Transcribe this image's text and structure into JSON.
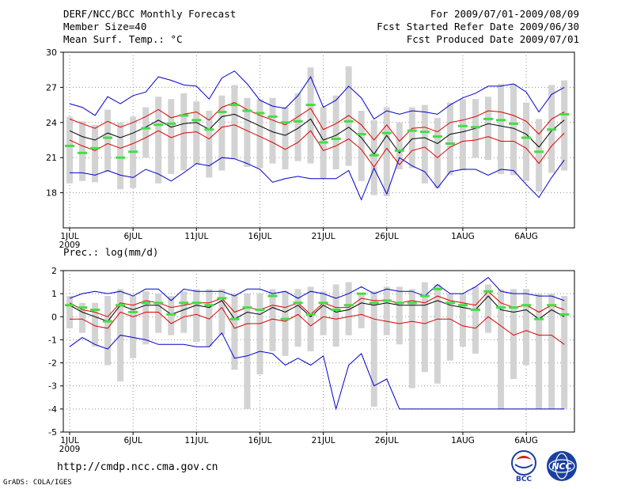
{
  "header": {
    "title": "DERF/NCC/BCC Monthly Forecast",
    "member_size": "Member Size=40",
    "variable": "Mean Surf. Temp.: °C",
    "forecast_period": "For 2009/07/01-2009/08/09",
    "started_refer": "Fcst Started Refer Date 2009/06/30",
    "produced": "Fcst Produced Date 2009/07/01"
  },
  "footer": {
    "url": "http://cmdp.ncc.cma.gov.cn",
    "software": "GrADS: COLA/IGES",
    "logo_bcc": "BCC",
    "logo_ncc": "NCC"
  },
  "colors": {
    "bar": "#d3d3d3",
    "median": "#44dd44",
    "mean": "#000000",
    "spread": "#dd0000",
    "extreme": "#0000cc",
    "grid": "#909090"
  },
  "chart_data": [
    {
      "type": "line",
      "title": "Mean Surf. Temp.: °C",
      "xlabel": "",
      "ylabel": "",
      "x_ticks": [
        "1JUL",
        "6JUL",
        "11JUL",
        "16JUL",
        "21JUL",
        "26JUL",
        "1AUG",
        "6AUG"
      ],
      "x_tick_day": [
        1,
        6,
        11,
        16,
        21,
        26,
        32,
        37
      ],
      "year_label": "2009",
      "ylim": [
        15,
        30
      ],
      "y_ticks": [
        18,
        21,
        24,
        27,
        30
      ],
      "days": [
        1,
        2,
        3,
        4,
        5,
        6,
        7,
        8,
        9,
        10,
        11,
        12,
        13,
        14,
        15,
        16,
        17,
        18,
        19,
        20,
        21,
        22,
        23,
        24,
        25,
        26,
        27,
        28,
        29,
        30,
        31,
        32,
        33,
        34,
        35,
        36,
        37,
        38,
        39,
        40
      ],
      "series": [
        {
          "name": "max",
          "values": [
            25.6,
            25.3,
            24.6,
            26.2,
            25.6,
            26.3,
            26.6,
            27.9,
            27.6,
            27.2,
            27.1,
            26.0,
            27.8,
            28.4,
            27.3,
            25.9,
            25.4,
            25.2,
            26.3,
            27.9,
            25.3,
            25.9,
            27.1,
            26.1,
            24.3,
            25.0,
            24.7,
            25.0,
            24.9,
            24.7,
            25.5,
            26.1,
            26.5,
            27.1,
            27.1,
            27.3,
            26.6,
            24.9,
            26.4,
            27.0
          ]
        },
        {
          "name": "upper",
          "values": [
            24.3,
            23.9,
            23.5,
            24.1,
            23.6,
            24.0,
            24.5,
            25.1,
            24.4,
            24.7,
            24.9,
            24.2,
            25.3,
            25.7,
            25.1,
            24.6,
            24.2,
            23.8,
            24.5,
            25.2,
            23.4,
            23.9,
            24.6,
            23.8,
            22.5,
            23.8,
            22.4,
            23.5,
            23.6,
            23.2,
            24.0,
            24.2,
            24.5,
            25.0,
            24.9,
            24.6,
            24.1,
            23.0,
            24.3,
            24.9
          ]
        },
        {
          "name": "mean",
          "values": [
            23.3,
            22.8,
            22.5,
            23.1,
            22.7,
            23.1,
            23.6,
            24.2,
            23.6,
            23.9,
            24.0,
            23.4,
            24.5,
            24.7,
            24.2,
            23.7,
            23.2,
            22.9,
            23.5,
            24.3,
            22.5,
            22.9,
            23.6,
            22.7,
            21.3,
            22.9,
            21.4,
            22.6,
            22.7,
            22.2,
            23.0,
            23.2,
            23.5,
            23.9,
            23.7,
            23.5,
            23.0,
            21.9,
            23.3,
            24.2
          ]
        },
        {
          "name": "lower",
          "values": [
            22.5,
            22.0,
            21.6,
            22.2,
            21.8,
            22.2,
            22.7,
            23.3,
            22.7,
            23.1,
            23.2,
            22.6,
            23.6,
            23.8,
            23.3,
            22.8,
            22.3,
            21.7,
            22.3,
            23.3,
            21.6,
            22.0,
            22.6,
            21.7,
            20.2,
            21.8,
            20.4,
            21.6,
            21.9,
            21.0,
            21.9,
            22.4,
            22.5,
            22.8,
            22.4,
            22.4,
            21.8,
            20.5,
            22.0,
            23.1
          ]
        },
        {
          "name": "min",
          "values": [
            19.7,
            19.7,
            19.5,
            19.9,
            19.5,
            19.3,
            20.0,
            19.6,
            19.0,
            19.7,
            20.5,
            20.3,
            21.0,
            20.9,
            20.5,
            20.0,
            18.9,
            19.2,
            19.4,
            19.2,
            19.2,
            19.2,
            19.9,
            17.4,
            20.1,
            17.9,
            21.0,
            20.3,
            19.8,
            18.4,
            19.8,
            20.0,
            20.0,
            19.5,
            20.0,
            19.9,
            18.7,
            17.6,
            19.3,
            20.8
          ]
        },
        {
          "name": "median",
          "values": [
            22.0,
            21.4,
            21.8,
            22.7,
            21.0,
            21.5,
            23.5,
            23.8,
            23.9,
            24.6,
            24.2,
            23.4,
            24.9,
            25.5,
            25.0,
            24.8,
            24.5,
            24.0,
            24.1,
            25.5,
            22.3,
            22.6,
            24.1,
            23.0,
            21.2,
            23.1,
            21.6,
            23.3,
            23.2,
            22.8,
            22.2,
            23.7,
            23.6,
            24.3,
            24.2,
            23.9,
            22.7,
            21.5,
            23.4,
            24.7
          ]
        },
        {
          "name": "box_high",
          "values": [
            24.5,
            24.1,
            23.8,
            25.1,
            24.0,
            24.5,
            25.3,
            26.2,
            26.0,
            26.5,
            25.8,
            25.0,
            26.3,
            27.2,
            26.1,
            26.0,
            26.1,
            25.3,
            26.5,
            28.7,
            25.3,
            26.3,
            28.8,
            25.0,
            24.2,
            25.3,
            24.0,
            25.3,
            25.5,
            24.4,
            25.7,
            26.0,
            26.0,
            26.2,
            27.3,
            27.3,
            25.7,
            24.3,
            27.2,
            27.6
          ]
        },
        {
          "name": "box_low",
          "values": [
            18.8,
            19.0,
            18.9,
            19.8,
            18.3,
            18.4,
            21.0,
            18.8,
            19.6,
            19.9,
            20.4,
            19.3,
            19.9,
            20.9,
            20.2,
            20.1,
            20.5,
            20.0,
            20.7,
            20.5,
            19.2,
            20.0,
            20.3,
            19.0,
            17.8,
            17.7,
            20.0,
            20.1,
            18.8,
            18.4,
            19.5,
            19.9,
            21.0,
            20.8,
            19.6,
            19.5,
            19.0,
            18.1,
            19.7,
            19.9
          ]
        }
      ]
    },
    {
      "type": "line",
      "title": "Prec.: log(mm/d)",
      "xlabel": "",
      "ylabel": "",
      "x_ticks": [
        "1JUL",
        "6JUL",
        "11JUL",
        "16JUL",
        "21JUL",
        "26JUL",
        "1AUG",
        "6AUG"
      ],
      "x_tick_day": [
        1,
        6,
        11,
        16,
        21,
        26,
        32,
        37
      ],
      "year_label": "2009",
      "ylim": [
        -5,
        2
      ],
      "y_ticks": [
        -5,
        -4,
        -3,
        -2,
        -1,
        0,
        1,
        2
      ],
      "days": [
        1,
        2,
        3,
        4,
        5,
        6,
        7,
        8,
        9,
        10,
        11,
        12,
        13,
        14,
        15,
        16,
        17,
        18,
        19,
        20,
        21,
        22,
        23,
        24,
        25,
        26,
        27,
        28,
        29,
        30,
        31,
        32,
        33,
        34,
        35,
        36,
        37,
        38,
        39,
        40
      ],
      "series": [
        {
          "name": "max",
          "values": [
            0.8,
            1.0,
            1.1,
            1.0,
            1.1,
            0.9,
            1.2,
            1.2,
            0.7,
            1.2,
            1.1,
            1.1,
            1.1,
            0.9,
            1.2,
            1.2,
            1.0,
            1.1,
            0.8,
            1.1,
            1.0,
            0.8,
            1.0,
            1.3,
            1.0,
            1.2,
            1.1,
            1.1,
            0.9,
            1.4,
            1.0,
            1.0,
            1.3,
            1.7,
            1.1,
            1.0,
            1.0,
            0.9,
            0.9,
            0.7
          ]
        },
        {
          "name": "upper",
          "values": [
            0.6,
            0.3,
            0.2,
            0.0,
            0.6,
            0.5,
            0.7,
            0.6,
            0.4,
            0.5,
            0.6,
            0.6,
            0.8,
            0.2,
            0.4,
            0.3,
            0.5,
            0.4,
            0.6,
            0.1,
            0.6,
            0.4,
            0.4,
            0.8,
            0.7,
            0.7,
            0.6,
            0.7,
            0.6,
            0.9,
            0.7,
            0.6,
            0.5,
            1.1,
            0.6,
            0.4,
            0.5,
            0.2,
            0.5,
            0.3
          ]
        },
        {
          "name": "mean",
          "values": [
            0.5,
            0.2,
            0.0,
            -0.2,
            0.5,
            0.3,
            0.5,
            0.5,
            0.1,
            0.3,
            0.5,
            0.4,
            0.7,
            -0.1,
            0.2,
            0.1,
            0.4,
            0.2,
            0.5,
            0.0,
            0.5,
            0.2,
            0.3,
            0.6,
            0.5,
            0.6,
            0.5,
            0.5,
            0.5,
            0.7,
            0.5,
            0.4,
            0.3,
            0.9,
            0.3,
            0.2,
            0.3,
            -0.1,
            0.3,
            0.0
          ]
        },
        {
          "name": "lower",
          "values": [
            -0.1,
            -0.1,
            -0.4,
            -0.5,
            0.2,
            0.0,
            0.2,
            0.2,
            -0.3,
            0.0,
            0.1,
            -0.1,
            0.4,
            -0.5,
            -0.3,
            -0.3,
            -0.1,
            -0.2,
            0.1,
            -0.4,
            0.0,
            -0.1,
            0.0,
            0.1,
            -0.1,
            -0.2,
            -0.3,
            -0.2,
            -0.3,
            -0.1,
            -0.1,
            -0.4,
            -0.5,
            0.0,
            -0.4,
            -0.8,
            -0.6,
            -0.8,
            -0.8,
            -1.2
          ]
        },
        {
          "name": "min",
          "values": [
            -1.3,
            -0.9,
            -1.2,
            -1.4,
            -0.8,
            -0.9,
            -1.0,
            -1.2,
            -1.2,
            -1.2,
            -1.3,
            -1.3,
            -0.7,
            -1.8,
            -1.7,
            -1.5,
            -1.6,
            -2.1,
            -1.8,
            -2.1,
            -1.7,
            -4.0,
            -2.1,
            -1.6,
            -3.0,
            -2.7,
            -4.0,
            -4.0,
            -4.0,
            -4.0,
            -4.0,
            -4.0,
            -4.0,
            -4.0,
            -4.0,
            -4.0,
            -4.0,
            -4.0,
            -4.0,
            -4.0
          ]
        },
        {
          "name": "median",
          "values": [
            0.5,
            0.4,
            0.3,
            -0.2,
            0.5,
            0.2,
            0.6,
            0.6,
            0.1,
            0.6,
            0.6,
            0.5,
            0.8,
            -0.1,
            0.4,
            0.3,
            0.9,
            -0.1,
            0.6,
            0.1,
            0.6,
            0.3,
            0.5,
            1.0,
            0.6,
            0.7,
            0.6,
            0.6,
            0.9,
            1.2,
            0.6,
            0.5,
            0.3,
            1.1,
            0.4,
            0.4,
            0.5,
            -0.1,
            0.5,
            0.1
          ]
        },
        {
          "name": "box_high",
          "values": [
            0.9,
            0.6,
            0.6,
            0.9,
            1.2,
            0.9,
            1.1,
            1.0,
            0.9,
            1.1,
            1.2,
            1.2,
            1.2,
            1.0,
            1.0,
            1.0,
            1.2,
            1.1,
            1.2,
            1.3,
            1.1,
            1.4,
            1.5,
            1.0,
            1.1,
            1.3,
            1.3,
            1.2,
            1.5,
            1.4,
            1.0,
            1.0,
            1.3,
            1.4,
            1.2,
            1.2,
            1.2,
            1.0,
            1.0,
            0.9
          ]
        },
        {
          "name": "box_low",
          "values": [
            -0.5,
            -0.7,
            -1.3,
            -2.1,
            -2.8,
            -1.8,
            -1.2,
            -0.7,
            -0.8,
            -0.7,
            -1.1,
            -1.3,
            -0.8,
            -2.3,
            -4.0,
            -2.5,
            -1.5,
            -1.7,
            -1.3,
            -1.5,
            -0.8,
            -1.3,
            -0.8,
            -0.5,
            -3.9,
            -0.8,
            -1.2,
            -3.1,
            -2.4,
            -2.9,
            -1.9,
            -1.3,
            -1.6,
            -0.7,
            -4.0,
            -2.7,
            -2.1,
            -4.0,
            -4.0,
            -4.0
          ]
        }
      ]
    }
  ]
}
